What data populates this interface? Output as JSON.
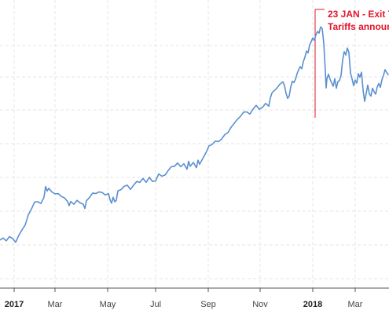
{
  "chart_data": {
    "type": "line",
    "title": "",
    "xlabel": "",
    "ylabel": "",
    "x_tick_labels": [
      {
        "label": "2017",
        "bold": true
      },
      {
        "label": "Mar",
        "bold": false
      },
      {
        "label": "May",
        "bold": false
      },
      {
        "label": "Jul",
        "bold": false
      },
      {
        "label": "Sep",
        "bold": false
      },
      {
        "label": "Nov",
        "bold": false
      },
      {
        "label": "2018",
        "bold": true
      },
      {
        "label": "Mar",
        "bold": false
      }
    ],
    "grid": true,
    "colors": {
      "line": "#5b8fd0",
      "event": "#e0162b",
      "grid": "#e4e4e4"
    },
    "note": "relative index read off a chart with no visible y-axis labels",
    "ylim": [
      0,
      100
    ],
    "series": [
      {
        "points": [
          [
            0,
            17.4
          ],
          [
            4,
            18.1
          ],
          [
            8,
            17.1
          ],
          [
            12,
            18.6
          ],
          [
            16,
            17.9
          ],
          [
            20,
            16.6
          ],
          [
            24,
            19.1
          ],
          [
            28,
            21.0
          ],
          [
            32,
            22.7
          ],
          [
            36,
            26.3
          ],
          [
            40,
            28.4
          ],
          [
            44,
            30.9
          ],
          [
            48,
            31.0
          ],
          [
            52,
            30.4
          ],
          [
            56,
            32.6
          ],
          [
            58,
            36.4
          ],
          [
            60,
            34.8
          ],
          [
            62,
            35.8
          ],
          [
            66,
            34.5
          ],
          [
            70,
            33.8
          ],
          [
            74,
            33.9
          ],
          [
            78,
            32.9
          ],
          [
            82,
            32.4
          ],
          [
            86,
            31.1
          ],
          [
            88,
            29.6
          ],
          [
            90,
            31.1
          ],
          [
            94,
            30.1
          ],
          [
            98,
            31.5
          ],
          [
            102,
            30.6
          ],
          [
            106,
            30.1
          ],
          [
            108,
            28.6
          ],
          [
            110,
            31.3
          ],
          [
            114,
            32.6
          ],
          [
            118,
            34.1
          ],
          [
            122,
            33.9
          ],
          [
            126,
            34.5
          ],
          [
            130,
            34.3
          ],
          [
            134,
            33.4
          ],
          [
            138,
            33.9
          ],
          [
            140,
            31.7
          ],
          [
            142,
            30.5
          ],
          [
            144,
            32.6
          ],
          [
            146,
            31.0
          ],
          [
            148,
            31.5
          ],
          [
            150,
            34.9
          ],
          [
            154,
            35.3
          ],
          [
            158,
            36.5
          ],
          [
            162,
            36.9
          ],
          [
            166,
            35.4
          ],
          [
            170,
            36.9
          ],
          [
            174,
            38.2
          ],
          [
            178,
            37.9
          ],
          [
            182,
            39.3
          ],
          [
            186,
            37.9
          ],
          [
            190,
            39.7
          ],
          [
            194,
            38.2
          ],
          [
            198,
            38.4
          ],
          [
            202,
            40.9
          ],
          [
            206,
            40.1
          ],
          [
            210,
            40.5
          ],
          [
            214,
            42.1
          ],
          [
            218,
            43.5
          ],
          [
            222,
            43.6
          ],
          [
            226,
            44.8
          ],
          [
            230,
            43.5
          ],
          [
            234,
            44.5
          ],
          [
            238,
            42.6
          ],
          [
            240,
            45.4
          ],
          [
            242,
            43.6
          ],
          [
            246,
            45.0
          ],
          [
            250,
            43.1
          ],
          [
            252,
            45.8
          ],
          [
            254,
            44.3
          ],
          [
            258,
            46.4
          ],
          [
            262,
            48.4
          ],
          [
            266,
            50.9
          ],
          [
            270,
            51.4
          ],
          [
            274,
            52.6
          ],
          [
            278,
            52.4
          ],
          [
            282,
            53.3
          ],
          [
            286,
            54.9
          ],
          [
            290,
            55.6
          ],
          [
            294,
            57.5
          ],
          [
            298,
            58.9
          ],
          [
            302,
            60.3
          ],
          [
            306,
            61.4
          ],
          [
            310,
            62.9
          ],
          [
            314,
            63.0
          ],
          [
            318,
            62.2
          ],
          [
            322,
            64.0
          ],
          [
            326,
            65.3
          ],
          [
            330,
            63.9
          ],
          [
            334,
            64.6
          ],
          [
            338,
            66.0
          ],
          [
            342,
            65.0
          ],
          [
            344,
            67.9
          ],
          [
            346,
            69.7
          ],
          [
            348,
            70.3
          ],
          [
            352,
            71.3
          ],
          [
            356,
            72.8
          ],
          [
            360,
            73.7
          ],
          [
            362,
            72.3
          ],
          [
            364,
            69.6
          ],
          [
            366,
            67.8
          ],
          [
            368,
            68.6
          ],
          [
            370,
            71.9
          ],
          [
            372,
            73.9
          ],
          [
            374,
            73.4
          ],
          [
            376,
            74.6
          ],
          [
            378,
            76.5
          ],
          [
            380,
            78.0
          ],
          [
            382,
            79.1
          ],
          [
            384,
            78.3
          ],
          [
            386,
            80.9
          ],
          [
            388,
            82.4
          ],
          [
            390,
            84.6
          ],
          [
            392,
            84.0
          ],
          [
            394,
            86.8
          ],
          [
            396,
            88.0
          ],
          [
            398,
            89.3
          ],
          [
            400,
            88.5
          ],
          [
            402,
            90.4
          ],
          [
            404,
            91.6
          ],
          [
            406,
            91.0
          ],
          [
            408,
            93.2
          ],
          [
            410,
            92.6
          ],
          [
            412,
            87.4
          ],
          [
            414,
            77.4
          ],
          [
            415,
            71.5
          ],
          [
            416,
            74.8
          ],
          [
            418,
            76.4
          ],
          [
            420,
            74.6
          ],
          [
            422,
            73.3
          ],
          [
            424,
            72.1
          ],
          [
            426,
            74.8
          ],
          [
            428,
            71.4
          ],
          [
            430,
            73.8
          ],
          [
            432,
            74.1
          ],
          [
            434,
            76.0
          ],
          [
            436,
            81.4
          ],
          [
            438,
            84.4
          ],
          [
            440,
            83.2
          ],
          [
            442,
            85.7
          ],
          [
            444,
            84.1
          ],
          [
            446,
            76.8
          ],
          [
            448,
            74.7
          ],
          [
            450,
            72.3
          ],
          [
            452,
            74.3
          ],
          [
            454,
            73.2
          ],
          [
            456,
            76.6
          ],
          [
            458,
            75.3
          ],
          [
            460,
            77.1
          ],
          [
            462,
            70.8
          ],
          [
            464,
            66.7
          ],
          [
            466,
            69.6
          ],
          [
            468,
            72.5
          ],
          [
            470,
            69.4
          ],
          [
            472,
            68.6
          ],
          [
            474,
            71.4
          ],
          [
            476,
            70.2
          ],
          [
            478,
            69.3
          ],
          [
            480,
            71.8
          ],
          [
            482,
            73.1
          ],
          [
            484,
            71.7
          ],
          [
            486,
            74.4
          ],
          [
            488,
            76.0
          ],
          [
            490,
            78.0
          ],
          [
            492,
            77.0
          ],
          [
            494,
            76.2
          ]
        ]
      }
    ],
    "annotations": [
      {
        "line1": "23 JAN - Exit T",
        "line2": "Tariffs annour",
        "x": 401,
        "y_top": 98,
        "y_bottom": 62
      }
    ]
  }
}
